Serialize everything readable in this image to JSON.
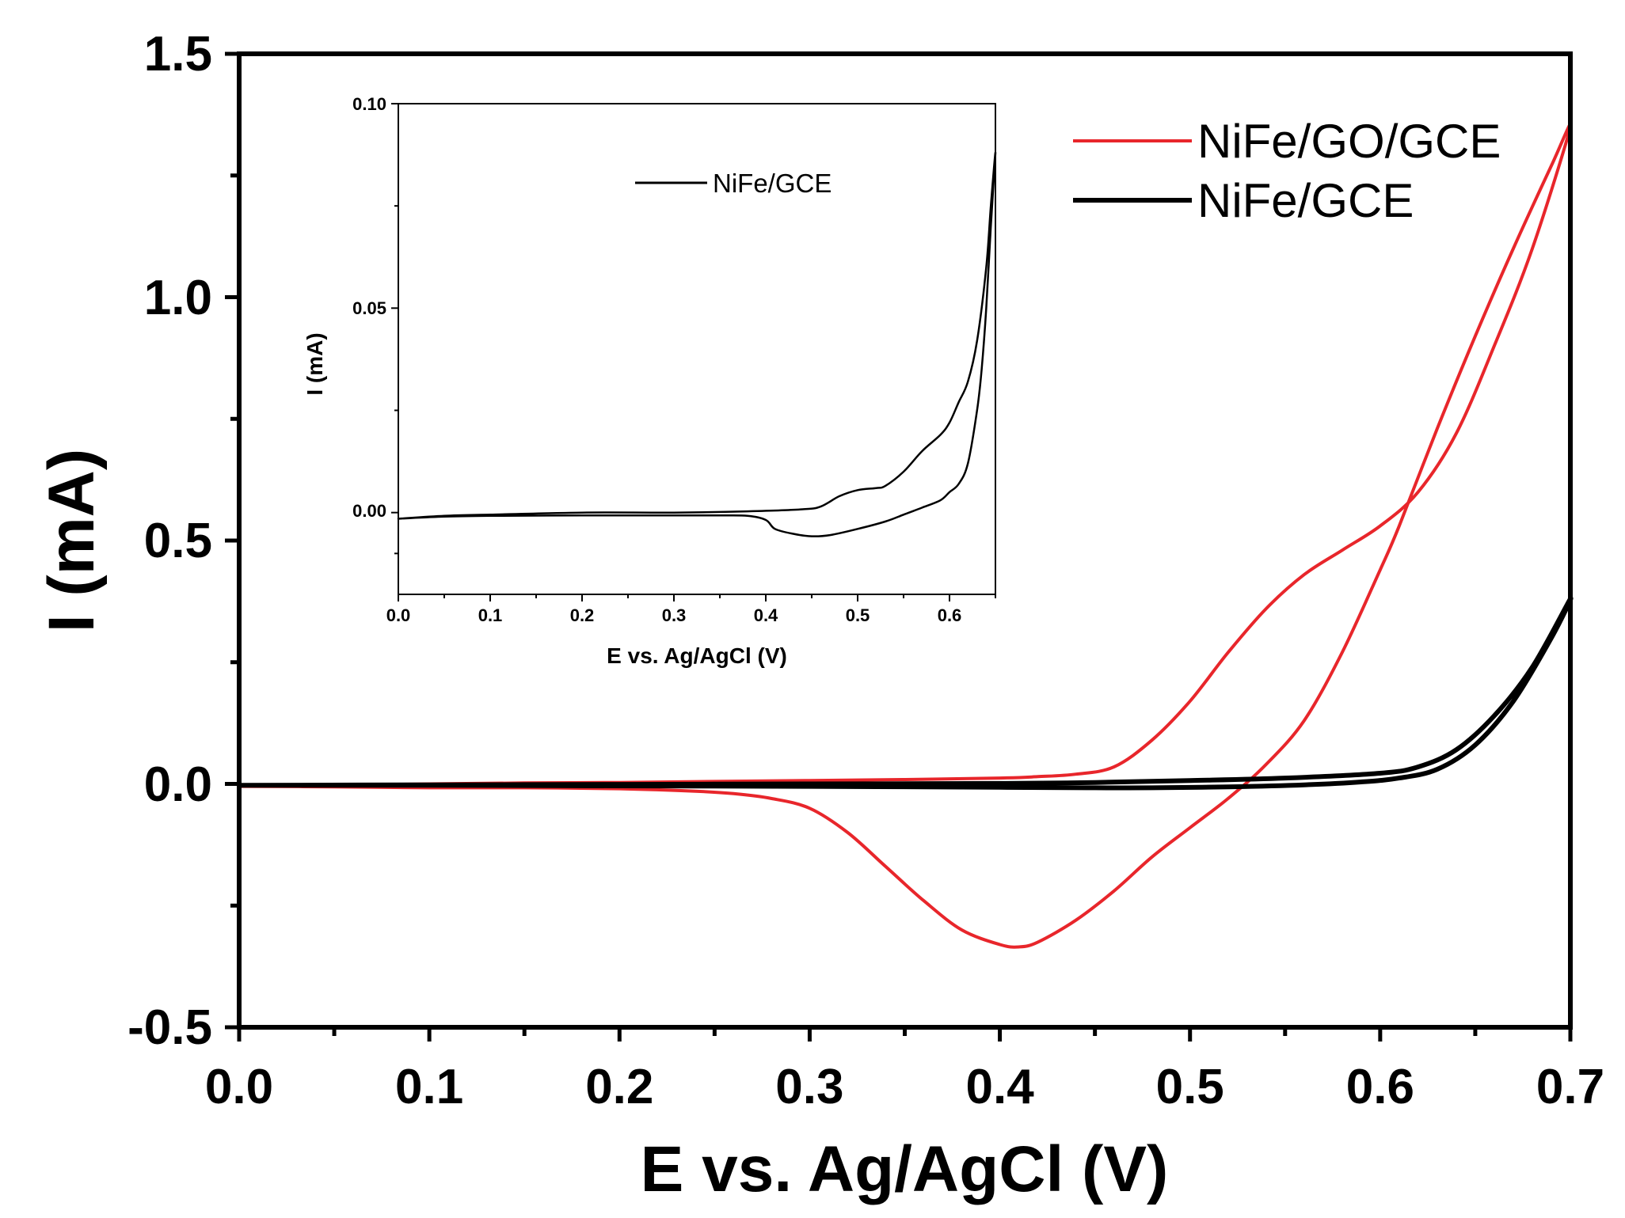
{
  "chart_data": [
    {
      "type": "line",
      "title": "",
      "xlabel": "E vs. Ag/AgCl (V)",
      "ylabel": "I (mA)",
      "xlim": [
        0.0,
        0.7
      ],
      "ylim": [
        -0.5,
        1.5
      ],
      "xticks": [
        "0.0",
        "0.1",
        "0.2",
        "0.3",
        "0.4",
        "0.5",
        "0.6",
        "0.7"
      ],
      "yticks": [
        "-0.5",
        "0.0",
        "0.5",
        "1.0",
        "1.5"
      ],
      "grid": false,
      "legend_position": "top-right",
      "series": [
        {
          "name": "NiFe/GO/GCE",
          "color": "#e8262b",
          "x": [
            0.0,
            0.05,
            0.1,
            0.15,
            0.2,
            0.25,
            0.3,
            0.35,
            0.4,
            0.42,
            0.44,
            0.46,
            0.48,
            0.5,
            0.52,
            0.54,
            0.56,
            0.58,
            0.6,
            0.62,
            0.64,
            0.66,
            0.68,
            0.7,
            0.69,
            0.67,
            0.65,
            0.63,
            0.61,
            0.6,
            0.58,
            0.56,
            0.54,
            0.52,
            0.5,
            0.48,
            0.46,
            0.44,
            0.42,
            0.41,
            0.4,
            0.38,
            0.36,
            0.34,
            0.32,
            0.3,
            0.28,
            0.26,
            0.24,
            0.2,
            0.15,
            0.1,
            0.05,
            0.0
          ],
          "y": [
            -0.005,
            -0.003,
            0.0,
            0.002,
            0.003,
            0.005,
            0.007,
            0.009,
            0.012,
            0.015,
            0.02,
            0.035,
            0.09,
            0.17,
            0.27,
            0.36,
            0.43,
            0.48,
            0.53,
            0.6,
            0.72,
            0.9,
            1.1,
            1.35,
            1.27,
            1.1,
            0.92,
            0.73,
            0.53,
            0.44,
            0.27,
            0.13,
            0.04,
            -0.03,
            -0.09,
            -0.15,
            -0.22,
            -0.28,
            -0.325,
            -0.335,
            -0.33,
            -0.3,
            -0.24,
            -0.17,
            -0.1,
            -0.05,
            -0.03,
            -0.02,
            -0.015,
            -0.01,
            -0.008,
            -0.008,
            -0.006,
            -0.005
          ]
        },
        {
          "name": "NiFe/GCE",
          "color": "#000000",
          "x": [
            0.0,
            0.1,
            0.2,
            0.3,
            0.4,
            0.45,
            0.5,
            0.55,
            0.6,
            0.62,
            0.64,
            0.66,
            0.68,
            0.7,
            0.69,
            0.67,
            0.65,
            0.63,
            0.61,
            0.59,
            0.56,
            0.52,
            0.48,
            0.45,
            0.4,
            0.3,
            0.2,
            0.1,
            0.0
          ],
          "y": [
            -0.003,
            -0.002,
            -0.001,
            0.0,
            0.001,
            0.003,
            0.007,
            0.012,
            0.022,
            0.035,
            0.07,
            0.14,
            0.24,
            0.38,
            0.3,
            0.17,
            0.08,
            0.03,
            0.012,
            0.004,
            -0.002,
            -0.006,
            -0.008,
            -0.008,
            -0.007,
            -0.005,
            -0.004,
            -0.003,
            -0.003
          ]
        }
      ]
    },
    {
      "type": "line",
      "title": "",
      "xlabel": "E vs. Ag/AgCl (V)",
      "ylabel": "I (mA)",
      "xlim": [
        0.0,
        0.65
      ],
      "ylim": [
        -0.02,
        0.1
      ],
      "xticks": [
        "0.0",
        "0.1",
        "0.2",
        "0.3",
        "0.4",
        "0.5",
        "0.6"
      ],
      "yticks": [
        "0.00",
        "0.05",
        "0.10"
      ],
      "grid": false,
      "legend_position": "top-left",
      "series": [
        {
          "name": "NiFe/GCE",
          "color": "#000000",
          "x": [
            0.0,
            0.05,
            0.1,
            0.2,
            0.3,
            0.38,
            0.44,
            0.46,
            0.48,
            0.5,
            0.52,
            0.53,
            0.55,
            0.57,
            0.59,
            0.6,
            0.61,
            0.62,
            0.63,
            0.64,
            0.645,
            0.65,
            0.645,
            0.64,
            0.635,
            0.63,
            0.62,
            0.61,
            0.6,
            0.59,
            0.57,
            0.55,
            0.53,
            0.5,
            0.47,
            0.45,
            0.43,
            0.41,
            0.4,
            0.38,
            0.35,
            0.3,
            0.2,
            0.1,
            0.05,
            0.0
          ],
          "y": [
            -0.0015,
            -0.0008,
            -0.0005,
            0.0,
            0.0,
            0.0003,
            0.0008,
            0.0015,
            0.004,
            0.0055,
            0.006,
            0.0065,
            0.01,
            0.015,
            0.019,
            0.022,
            0.027,
            0.032,
            0.042,
            0.06,
            0.075,
            0.088,
            0.07,
            0.05,
            0.035,
            0.025,
            0.012,
            0.007,
            0.005,
            0.003,
            0.0012,
            -0.0005,
            -0.0022,
            -0.004,
            -0.0055,
            -0.0058,
            -0.0052,
            -0.004,
            -0.0018,
            -0.0008,
            -0.0007,
            -0.0007,
            -0.0007,
            -0.0008,
            -0.001,
            -0.0015
          ]
        }
      ]
    }
  ]
}
